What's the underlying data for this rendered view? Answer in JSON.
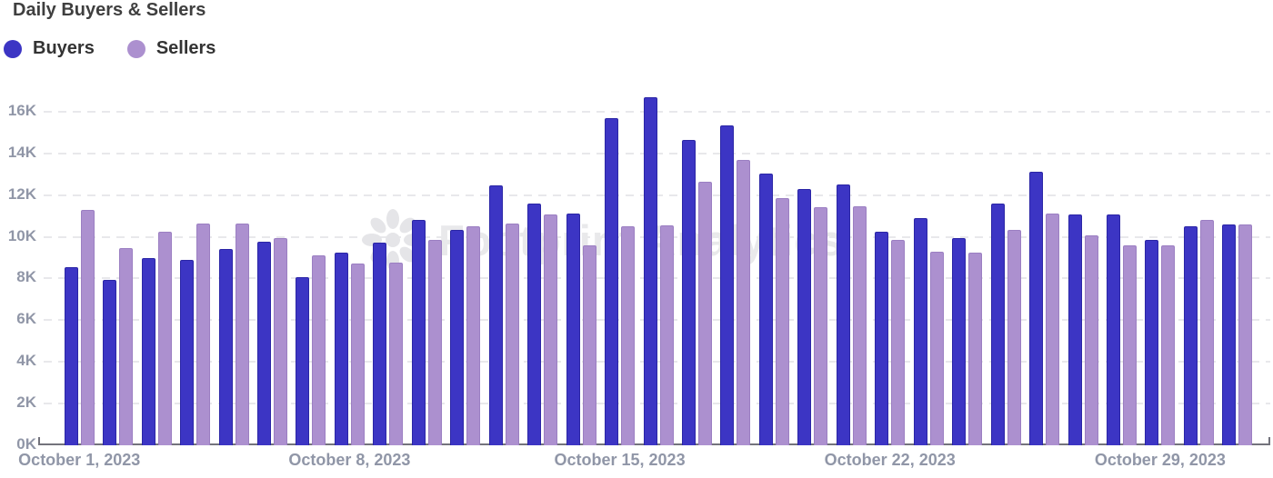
{
  "title": "Daily Buyers & Sellers",
  "legend": [
    {
      "name": "Buyers",
      "color": "#3c35c4"
    },
    {
      "name": "Sellers",
      "color": "#ac90cf"
    }
  ],
  "watermark": {
    "text": "Footprint Analytics",
    "icon": "footprint-flower-logo"
  },
  "colors": {
    "buyers_fill": "#3c35c4",
    "buyers_border": "#2b26a6",
    "sellers_fill": "#ac90cf",
    "sellers_border": "#9b7fc2",
    "title_text": "#3f3f3f",
    "axis_text": "#9096a7",
    "gridline": "#e8e8eb",
    "axis_line": "#73737c",
    "watermark": "#e9e9eb"
  },
  "chart_data": {
    "type": "bar",
    "title": "Daily Buyers & Sellers",
    "x_unit": "day of October 2023",
    "categories": [
      1,
      2,
      3,
      4,
      5,
      6,
      7,
      8,
      9,
      10,
      11,
      12,
      13,
      14,
      15,
      16,
      17,
      18,
      19,
      20,
      21,
      22,
      23,
      24,
      25,
      26,
      27,
      28,
      29,
      30,
      31
    ],
    "series": [
      {
        "name": "Buyers",
        "color": "#3c35c4",
        "values": [
          8550,
          7950,
          9000,
          8900,
          9400,
          9750,
          8050,
          9250,
          9700,
          10800,
          10350,
          12450,
          11600,
          11100,
          15700,
          16700,
          14650,
          15350,
          13050,
          12300,
          12500,
          10250,
          10900,
          9950,
          11600,
          13100,
          11050,
          11050,
          9850,
          10500,
          10600
        ]
      },
      {
        "name": "Sellers",
        "color": "#ac90cf",
        "values": [
          11300,
          9450,
          10250,
          10650,
          10650,
          9950,
          9100,
          8700,
          8750,
          9850,
          10500,
          10650,
          11050,
          9600,
          10500,
          10550,
          12650,
          13700,
          11850,
          11400,
          11450,
          9850,
          9300,
          9250,
          10350,
          11100,
          10050,
          9600,
          9600,
          10800,
          10600
        ]
      }
    ],
    "ylim": [
      0,
      17000
    ],
    "y_ticks": [
      "0K",
      "2K",
      "4K",
      "6K",
      "8K",
      "10K",
      "12K",
      "14K",
      "16K"
    ],
    "y_tick_interval": 2000,
    "x_ticks": [
      {
        "day": 1,
        "label": "October 1, 2023"
      },
      {
        "day": 8,
        "label": "October 8, 2023"
      },
      {
        "day": 15,
        "label": "October 15, 2023"
      },
      {
        "day": 22,
        "label": "October 22, 2023"
      },
      {
        "day": 29,
        "label": "October 29, 2023"
      }
    ],
    "grid": "horizontal-dashed",
    "legend_position": "top-left"
  }
}
